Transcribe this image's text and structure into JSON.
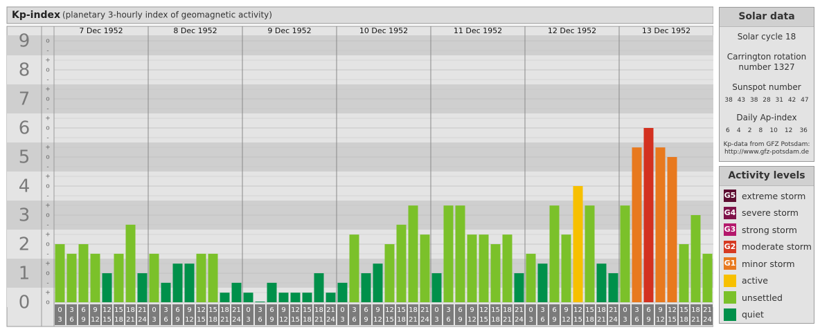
{
  "header": {
    "title": "Kp-index",
    "subtitle": "(planetary 3-hourly index of geomagnetic activity)"
  },
  "chart_data": {
    "type": "bar",
    "ylim": [
      0,
      9
    ],
    "yticks": [
      0,
      1,
      2,
      3,
      4,
      5,
      6,
      7,
      8,
      9
    ],
    "grid": true,
    "thirds": [
      "o",
      "+",
      "-"
    ],
    "hours": [
      {
        "from": 0,
        "to": 3
      },
      {
        "from": 3,
        "to": 6
      },
      {
        "from": 6,
        "to": 9
      },
      {
        "from": 9,
        "to": 12
      },
      {
        "from": 12,
        "to": 15
      },
      {
        "from": 15,
        "to": 18
      },
      {
        "from": 18,
        "to": 21
      },
      {
        "from": 21,
        "to": 24
      }
    ],
    "series": [
      {
        "name": "7 Dec 1952",
        "values": [
          2,
          1.67,
          2,
          1.67,
          1,
          1.67,
          2.67,
          1
        ],
        "colors": [
          "#7bc12a",
          "#7bc12a",
          "#7bc12a",
          "#7bc12a",
          "#00904a",
          "#7bc12a",
          "#7bc12a",
          "#00904a"
        ]
      },
      {
        "name": "8 Dec 1952",
        "values": [
          1.67,
          0.67,
          1.33,
          1.33,
          1.67,
          1.67,
          0.33,
          0.67
        ],
        "colors": [
          "#7bc12a",
          "#00904a",
          "#00904a",
          "#00904a",
          "#7bc12a",
          "#7bc12a",
          "#00904a",
          "#00904a"
        ]
      },
      {
        "name": "9 Dec 1952",
        "values": [
          0.33,
          0,
          0.67,
          0.33,
          0.33,
          0.33,
          1,
          0.33
        ],
        "colors": [
          "#00904a",
          "#00904a",
          "#00904a",
          "#00904a",
          "#00904a",
          "#00904a",
          "#00904a",
          "#00904a"
        ]
      },
      {
        "name": "10 Dec 1952",
        "values": [
          0.67,
          2.33,
          1,
          1.33,
          2,
          2.67,
          3.33,
          2.33
        ],
        "colors": [
          "#00904a",
          "#7bc12a",
          "#00904a",
          "#00904a",
          "#7bc12a",
          "#7bc12a",
          "#7bc12a",
          "#7bc12a"
        ]
      },
      {
        "name": "11 Dec 1952",
        "values": [
          1,
          3.33,
          3.33,
          2.33,
          2.33,
          2,
          2.33,
          1
        ],
        "colors": [
          "#00904a",
          "#7bc12a",
          "#7bc12a",
          "#7bc12a",
          "#7bc12a",
          "#7bc12a",
          "#7bc12a",
          "#00904a"
        ]
      },
      {
        "name": "12 Dec 1952",
        "values": [
          1.67,
          1.33,
          3.33,
          2.33,
          4,
          3.33,
          1.33,
          1
        ],
        "colors": [
          "#7bc12a",
          "#00904a",
          "#7bc12a",
          "#7bc12a",
          "#f7c000",
          "#7bc12a",
          "#00904a",
          "#00904a"
        ]
      },
      {
        "name": "13 Dec 1952",
        "values": [
          3.33,
          5.33,
          6,
          5.33,
          5,
          2,
          3,
          1.67
        ],
        "colors": [
          "#7bc12a",
          "#e8791e",
          "#d33120",
          "#e8791e",
          "#e8791e",
          "#7bc12a",
          "#7bc12a",
          "#7bc12a"
        ]
      }
    ]
  },
  "solar_data": {
    "title": "Solar data",
    "solar_cycle": "Solar cycle 18",
    "carrington": [
      "Carrington rotation",
      "number 1327"
    ],
    "sunspot_title": "Sunspot number",
    "sunspot": [
      38,
      43,
      38,
      28,
      31,
      42,
      47
    ],
    "ap_title": "Daily Ap-index",
    "ap": [
      6,
      4,
      2,
      8,
      10,
      12,
      36
    ],
    "source": [
      "Kp-data from GFZ Potsdam:",
      "http://www.gfz-potsdam.de"
    ]
  },
  "activity_levels": {
    "title": "Activity levels",
    "items": [
      {
        "code": "G5",
        "label": "extreme storm",
        "color": "#5c0c30"
      },
      {
        "code": "G4",
        "label": "severe storm",
        "color": "#7f1249"
      },
      {
        "code": "G3",
        "label": "strong storm",
        "color": "#b4186c"
      },
      {
        "code": "G2",
        "label": "moderate storm",
        "color": "#d63a22"
      },
      {
        "code": "G1",
        "label": "minor storm",
        "color": "#e8791e"
      },
      {
        "label": "active",
        "color": "#f7c000"
      },
      {
        "label": "unsettled",
        "color": "#7bc12a"
      },
      {
        "label": "quiet",
        "color": "#00904a"
      }
    ]
  }
}
